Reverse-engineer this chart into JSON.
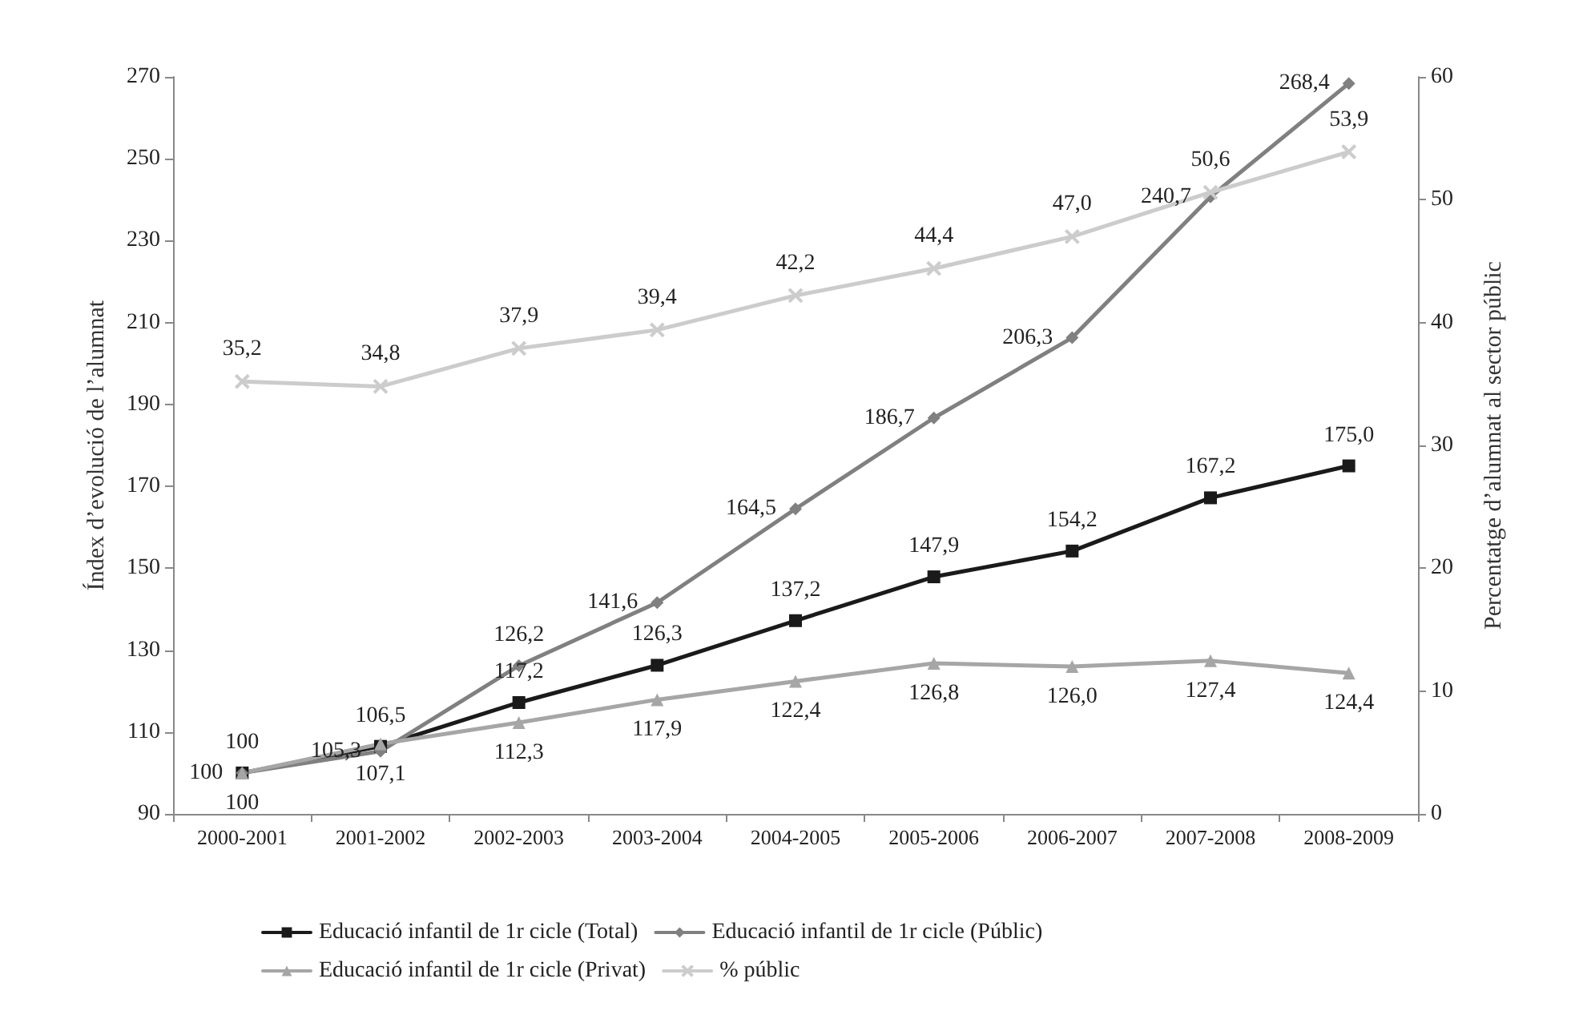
{
  "chart_data": {
    "type": "line",
    "ylabel": "Índex d’evolució de l’alumnat",
    "y2label": "Percentatge d’alumnat al sector públic",
    "categories": [
      "2000-2001",
      "2001-2002",
      "2002-2003",
      "2003-2004",
      "2004-2005",
      "2005-2006",
      "2006-2007",
      "2007-2008",
      "2008-2009"
    ],
    "series": [
      {
        "name": "Educació infantil de 1r cicle (Total)",
        "color": "#1a1a1a",
        "marker": "square",
        "values": [
          100,
          106.5,
          117.2,
          126.3,
          137.2,
          147.9,
          154.2,
          167.2,
          175.0
        ],
        "value_labels": [
          "100",
          "106,5",
          "117,2",
          "126,3",
          "137,2",
          "147,9",
          "154,2",
          "167,2",
          "175,0"
        ]
      },
      {
        "name": "Educació infantil de 1r cicle (Públic)",
        "color": "#808080",
        "marker": "diamond",
        "values": [
          100,
          105.3,
          126.2,
          141.6,
          164.5,
          186.7,
          206.3,
          240.7,
          268.4
        ],
        "value_labels": [
          "100",
          "105,3",
          "126,2",
          "141,6",
          "164,5",
          "186,7",
          "206,3",
          "240,7",
          "268,4"
        ]
      },
      {
        "name": "Educació infantil de 1r cicle (Privat)",
        "color": "#a6a6a6",
        "marker": "triangle",
        "values": [
          100,
          107.1,
          112.3,
          117.9,
          122.4,
          126.8,
          126.0,
          127.4,
          124.4
        ],
        "value_labels": [
          "100",
          "107,1",
          "112,3",
          "117,9",
          "122,4",
          "126,8",
          "126,0",
          "127,4",
          "124,4"
        ]
      },
      {
        "name": "% públic",
        "color": "#cccccc",
        "marker": "cross",
        "axis": "y2",
        "values": [
          35.2,
          34.8,
          37.9,
          39.4,
          42.2,
          44.4,
          47.0,
          50.6,
          53.9
        ],
        "value_labels": [
          "35,2",
          "34,8",
          "37,9",
          "39,4",
          "42,2",
          "44,4",
          "47,0",
          "50,6",
          "53,9"
        ]
      }
    ],
    "ylim": [
      90,
      270
    ],
    "yticks": [
      90,
      110,
      130,
      150,
      170,
      190,
      210,
      230,
      250,
      270
    ],
    "y2lim": [
      0,
      60
    ],
    "y2ticks": [
      0,
      10,
      20,
      30,
      40,
      50,
      60
    ],
    "grid": false,
    "legend": "bottom",
    "line_style": "solid"
  }
}
